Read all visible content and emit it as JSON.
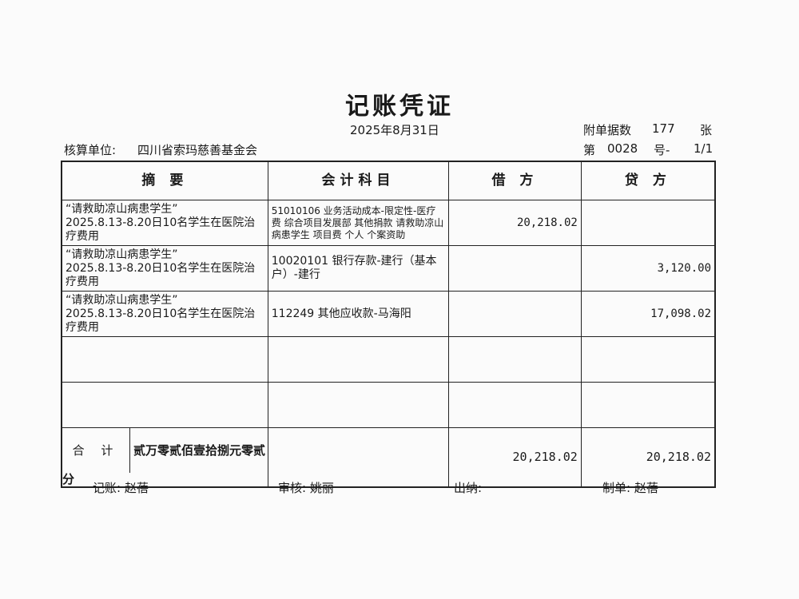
{
  "title": "记账凭证",
  "date": "2025年8月31日",
  "attachments_label": "附单据数",
  "attachments_count": "177",
  "attachments_unit": "张",
  "unit_label": "核算单位:",
  "unit_name": "四川省索玛慈善基金会",
  "voucher_prefix": "第",
  "voucher_no": "0028",
  "voucher_suffix": "号-",
  "voucher_page": "1/1",
  "headers": [
    "摘 要",
    "会计科目",
    "借 方",
    "贷 方"
  ],
  "rows": [
    {
      "summary1": "“请救助凉山病患学生”",
      "summary2": "2025.8.13-8.20日10名学生在医院治疗费用",
      "account": "51010106 业务活动成本-限定性-医疗费 综合项目发展部 其他捐款 请救助凉山病患学生 项目费 个人 个案资助",
      "debit": "20,218.02",
      "credit": ""
    },
    {
      "summary1": "“请救助凉山病患学生”",
      "summary2": "2025.8.13-8.20日10名学生在医院治疗费用",
      "account": "10020101 银行存款-建行（基本户）-建行",
      "debit": "",
      "credit": "3,120.00"
    },
    {
      "summary1": "“请救助凉山病患学生”",
      "summary2": "2025.8.13-8.20日10名学生在医院治疗费用",
      "account": "112249 其他应收款-马海阳",
      "debit": "",
      "credit": "17,098.02"
    }
  ],
  "total": {
    "label": "合 计",
    "words": "贰万零贰佰壹拾捌元零贰分",
    "debit": "20,218.02",
    "credit": "20,218.02"
  },
  "footer": {
    "bookkeeper": "记账: 赵蓓",
    "reviewer": "审核: 姚丽",
    "cashier": "出纳:",
    "preparer": "制单: 赵蓓"
  }
}
